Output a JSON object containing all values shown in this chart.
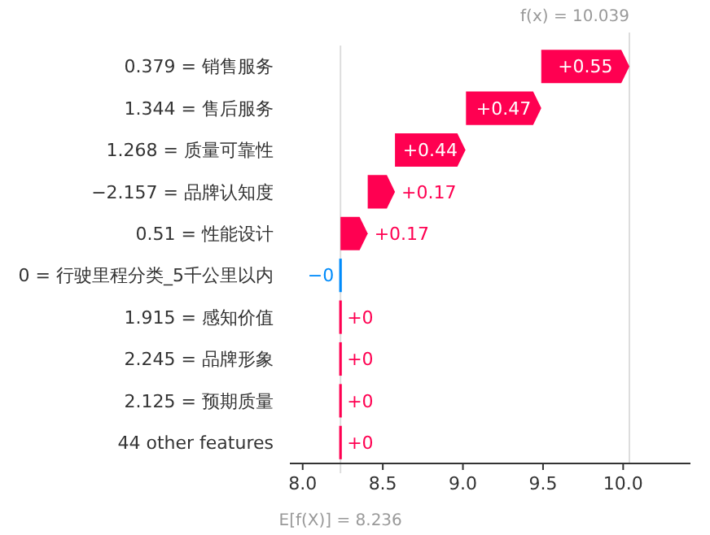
{
  "chart_data": {
    "type": "bar",
    "orientation": "horizontal",
    "categories": [
      "0.379 = 销售服务",
      "1.344 = 售后服务",
      "1.268 = 质量可靠性",
      "−2.157 = 品牌认知度",
      "0.51 = 性能设计",
      "0 = 行驶里程分类_5千公里以内",
      "1.915 = 感知价值",
      "2.245 = 品牌形象",
      "2.125 = 预期质量",
      "44 other features"
    ],
    "values": [
      0.55,
      0.47,
      0.44,
      0.17,
      0.17,
      0,
      0,
      0,
      0,
      0
    ],
    "base": [
      9.489,
      9.019,
      8.576,
      8.406,
      8.236,
      8.236,
      8.236,
      8.236,
      8.236,
      8.236
    ],
    "colors": [
      "#ff0051",
      "#ff0051",
      "#ff0051",
      "#ff0051",
      "#ff0051",
      "#008bfb",
      "#ff0051",
      "#ff0051",
      "#ff0051",
      "#ff0051"
    ],
    "value_labels": [
      "+0.55",
      "+0.47",
      "+0.44",
      "+0.17",
      "+0.17",
      "−0",
      "+0",
      "+0",
      "+0",
      "+0"
    ],
    "xlim": [
      7.92,
      10.42
    ],
    "xticks": [
      {
        "value": 8.0,
        "label": "8.0"
      },
      {
        "value": 8.5,
        "label": "8.5"
      },
      {
        "value": 9.0,
        "label": "9.0"
      },
      {
        "value": 9.5,
        "label": "9.5"
      },
      {
        "value": 10.0,
        "label": "10.0"
      }
    ],
    "ref_lines": [
      {
        "axis": "x",
        "value": 10.039,
        "label": "f(x) = 10.039",
        "color": "#dddddd"
      },
      {
        "axis": "x",
        "value": 8.236,
        "label": "E[f(X)] = 8.236",
        "color": "#dddddd"
      }
    ]
  }
}
